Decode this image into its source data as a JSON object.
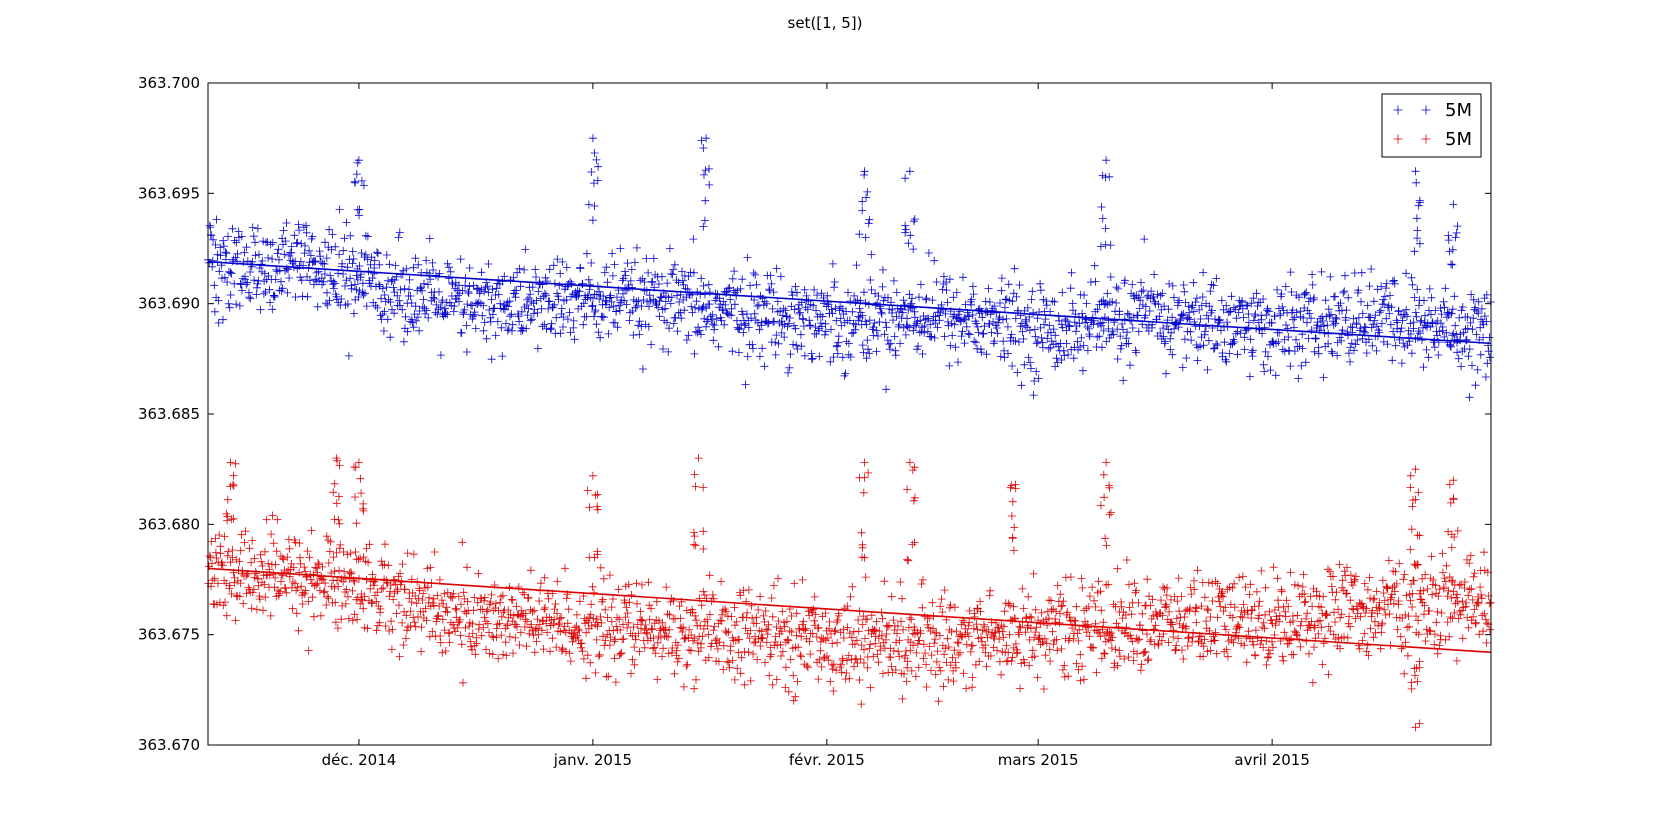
{
  "chart_data": {
    "type": "scatter",
    "title": "set([1, 5])",
    "xlabel": "",
    "ylabel": "",
    "x_range": [
      "2014-11-11",
      "2015-04-30"
    ],
    "ylim": [
      363.67,
      363.7
    ],
    "y_ticks": [
      363.67,
      363.675,
      363.68,
      363.685,
      363.69,
      363.695,
      363.7
    ],
    "y_tick_labels": [
      "363.670",
      "363.675",
      "363.680",
      "363.685",
      "363.690",
      "363.695",
      "363.700"
    ],
    "x_ticks": [
      "2014-12-01",
      "2015-01-01",
      "2015-02-01",
      "2015-03-01",
      "2015-04-01"
    ],
    "x_tick_labels": [
      "déc. 2014",
      "janv. 2015",
      "févr. 2015",
      "mars 2015",
      "avril 2015"
    ],
    "grid": false,
    "legend": {
      "placement": "top-right",
      "entries": [
        {
          "label": "5M",
          "color": "#0000cc",
          "marker": "+"
        },
        {
          "label": "5M",
          "color": "#dd0000",
          "marker": "+"
        }
      ]
    },
    "series": [
      {
        "label": "5M",
        "color": "#0000cc",
        "marker": "+",
        "points_per_day": 12,
        "trend": {
          "x": [
            "2014-11-11",
            "2015-04-30"
          ],
          "y": [
            363.6919,
            363.6882
          ]
        },
        "mean_anchors": {
          "x": [
            "2014-11-11",
            "2014-11-20",
            "2014-12-01",
            "2014-12-15",
            "2015-01-01",
            "2015-01-15",
            "2015-02-01",
            "2015-02-15",
            "2015-03-01",
            "2015-03-15",
            "2015-04-01",
            "2015-04-15",
            "2015-04-30"
          ],
          "y": [
            363.6915,
            363.6917,
            363.6912,
            363.6898,
            363.6902,
            363.6898,
            363.6893,
            363.6896,
            363.6888,
            363.6894,
            363.6889,
            363.6893,
            363.6887
          ]
        },
        "spread": 0.0018,
        "spikes": [
          {
            "x": "2014-12-01",
            "y": 363.6965
          },
          {
            "x": "2015-01-01",
            "y": 363.6975
          },
          {
            "x": "2015-01-16",
            "y": 363.6975
          },
          {
            "x": "2015-02-06",
            "y": 363.696
          },
          {
            "x": "2015-02-12",
            "y": 363.696
          },
          {
            "x": "2015-03-10",
            "y": 363.6965
          },
          {
            "x": "2015-04-20",
            "y": 363.696
          },
          {
            "x": "2015-04-25",
            "y": 363.6945
          }
        ]
      },
      {
        "label": "5M",
        "color": "#dd0000",
        "marker": "+",
        "points_per_day": 12,
        "trend": {
          "x": [
            "2014-11-11",
            "2015-04-30"
          ],
          "y": [
            363.678,
            363.6742
          ]
        },
        "mean_anchors": {
          "x": [
            "2014-11-11",
            "2014-11-20",
            "2014-12-01",
            "2014-12-15",
            "2015-01-01",
            "2015-01-15",
            "2015-02-01",
            "2015-02-15",
            "2015-03-01",
            "2015-03-15",
            "2015-04-01",
            "2015-04-15",
            "2015-04-30"
          ],
          "y": [
            363.6778,
            363.6777,
            363.6773,
            363.6757,
            363.6754,
            363.675,
            363.6748,
            363.6746,
            363.6752,
            363.6755,
            363.6757,
            363.6762,
            363.6765
          ]
        },
        "spread": 0.0019,
        "spikes": [
          {
            "x": "2014-11-14",
            "y": 363.6828
          },
          {
            "x": "2014-11-28",
            "y": 363.683
          },
          {
            "x": "2014-12-01",
            "y": 363.6828
          },
          {
            "x": "2015-01-01",
            "y": 363.6822
          },
          {
            "x": "2015-01-15",
            "y": 363.683
          },
          {
            "x": "2015-02-06",
            "y": 363.6828
          },
          {
            "x": "2015-02-12",
            "y": 363.6828
          },
          {
            "x": "2015-02-26",
            "y": 363.6818
          },
          {
            "x": "2015-03-10",
            "y": 363.6828
          },
          {
            "x": "2015-04-20",
            "y": 363.6825
          },
          {
            "x": "2015-04-25",
            "y": 363.682
          },
          {
            "x": "2015-04-20",
            "y": 363.6708
          }
        ]
      }
    ]
  }
}
